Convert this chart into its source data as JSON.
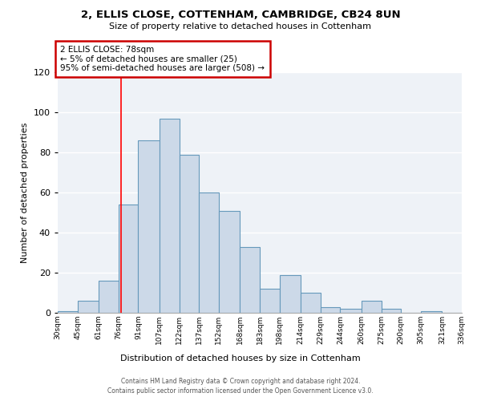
{
  "title": "2, ELLIS CLOSE, COTTENHAM, CAMBRIDGE, CB24 8UN",
  "subtitle": "Size of property relative to detached houses in Cottenham",
  "xlabel": "Distribution of detached houses by size in Cottenham",
  "ylabel": "Number of detached properties",
  "bar_color": "#ccd9e8",
  "bar_edge_color": "#6699bb",
  "background_color": "#eef2f7",
  "grid_color": "#ffffff",
  "red_line_x": 78,
  "annotation_title": "2 ELLIS CLOSE: 78sqm",
  "annotation_line1": "← 5% of detached houses are smaller (25)",
  "annotation_line2": "95% of semi-detached houses are larger (508) →",
  "annotation_box_color": "#cc0000",
  "bin_edges": [
    30,
    45,
    61,
    76,
    91,
    107,
    122,
    137,
    152,
    168,
    183,
    198,
    214,
    229,
    244,
    260,
    275,
    290,
    305,
    321,
    336
  ],
  "counts": [
    1,
    6,
    16,
    54,
    86,
    97,
    79,
    60,
    51,
    33,
    12,
    19,
    10,
    3,
    2,
    6,
    2,
    0,
    1,
    0
  ],
  "tick_labels": [
    "30sqm",
    "45sqm",
    "61sqm",
    "76sqm",
    "91sqm",
    "107sqm",
    "122sqm",
    "137sqm",
    "152sqm",
    "168sqm",
    "183sqm",
    "198sqm",
    "214sqm",
    "229sqm",
    "244sqm",
    "260sqm",
    "275sqm",
    "290sqm",
    "305sqm",
    "321sqm",
    "336sqm"
  ],
  "ylim": [
    0,
    120
  ],
  "yticks": [
    0,
    20,
    40,
    60,
    80,
    100,
    120
  ],
  "footer1": "Contains HM Land Registry data © Crown copyright and database right 2024.",
  "footer2": "Contains public sector information licensed under the Open Government Licence v3.0."
}
